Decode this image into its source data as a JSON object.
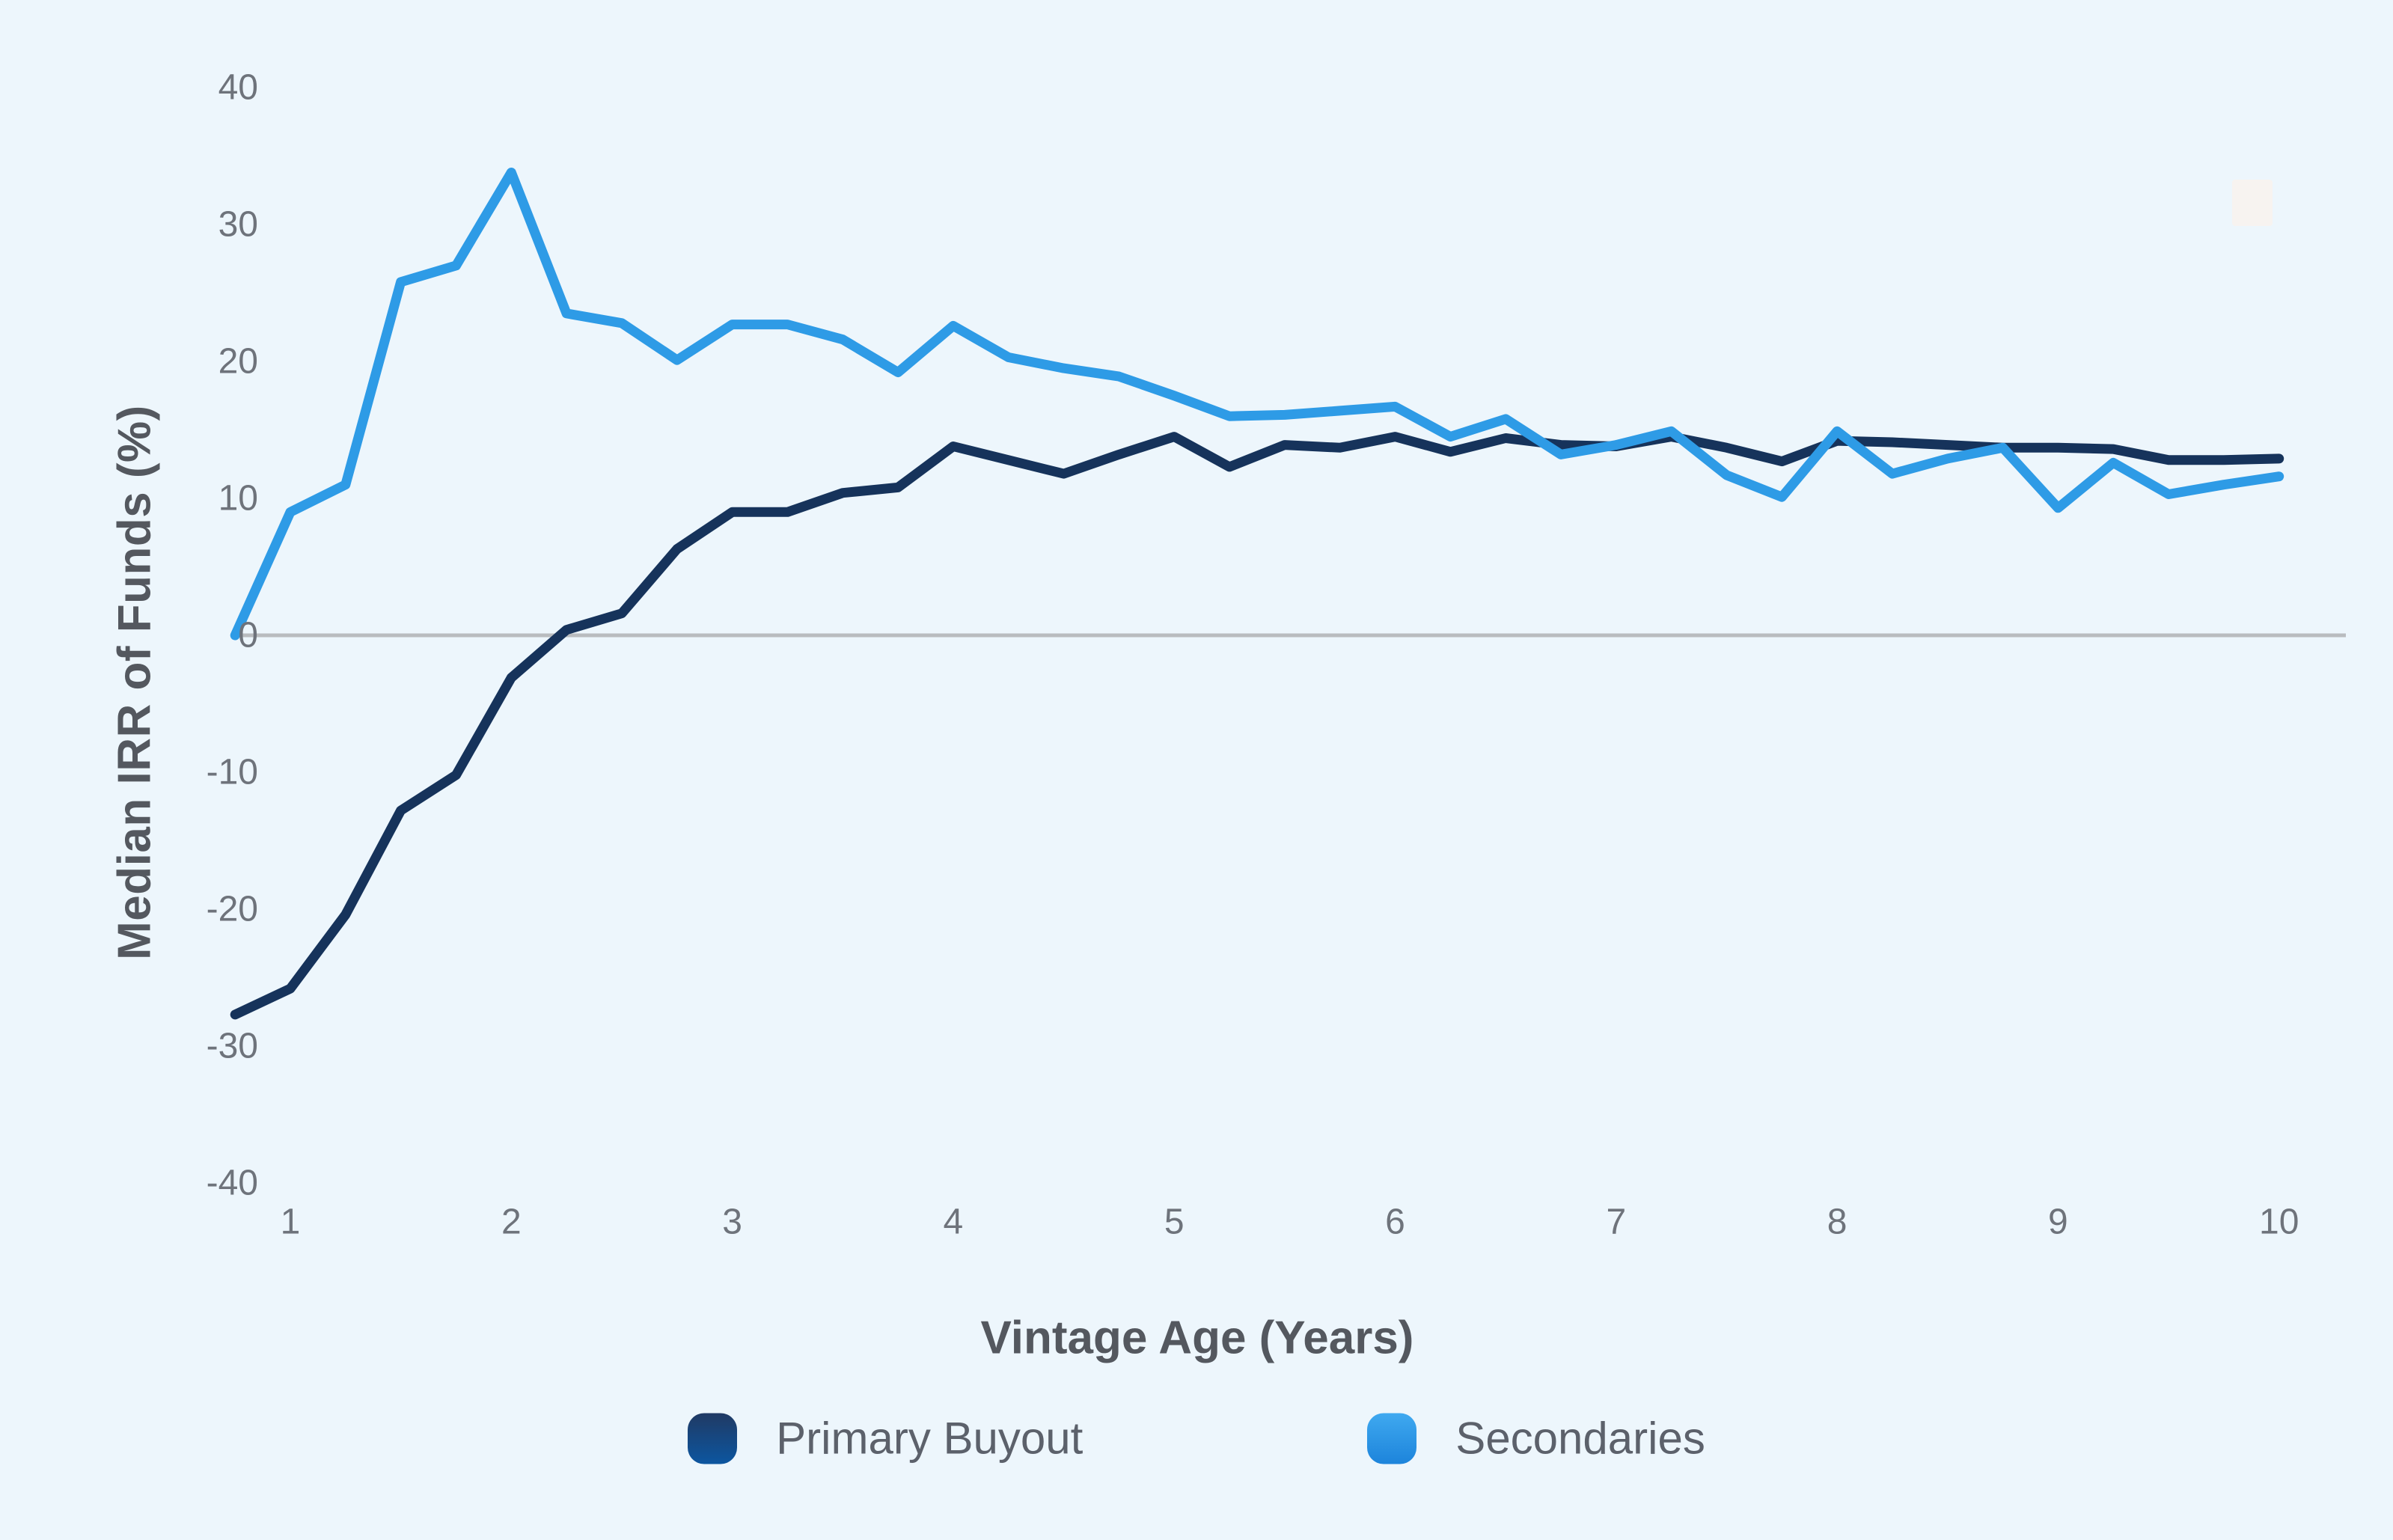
{
  "page": {
    "background_color": "#edf6fc"
  },
  "chart_data": {
    "type": "line",
    "title": "",
    "xlabel": "Vintage Age (Years)",
    "ylabel": "Median IRR of Funds (%)",
    "xlim": [
      0.75,
      10
    ],
    "ylim": [
      -40,
      40
    ],
    "xticks": [
      1,
      2,
      3,
      4,
      5,
      6,
      7,
      8,
      9,
      10
    ],
    "yticks": [
      40,
      30,
      20,
      10,
      0,
      -10,
      -20,
      -30,
      -40
    ],
    "grid": "zero-line-only",
    "zero_line_color": "#B9BCBF",
    "tick_label_color": "#6E737B",
    "axis_title_color": "#54585F",
    "legend_position": "bottom",
    "x": [
      0.75,
      1.0,
      1.25,
      1.5,
      1.75,
      2.0,
      2.25,
      2.5,
      2.75,
      3.0,
      3.25,
      3.5,
      3.75,
      4.0,
      4.25,
      4.5,
      4.75,
      5.0,
      5.25,
      5.5,
      5.75,
      6.0,
      6.25,
      6.5,
      6.75,
      7.0,
      7.25,
      7.5,
      7.75,
      8.0,
      8.25,
      8.5,
      8.75,
      9.0,
      9.25,
      9.5,
      9.75,
      10.0
    ],
    "series": [
      {
        "name": "Primary Buyout",
        "color": "#16335B",
        "swatch_gradient": [
          "#203A64",
          "#0C56A0"
        ],
        "values": [
          -27.7,
          -25.8,
          -20.4,
          -12.8,
          -10.2,
          -3.1,
          0.4,
          1.6,
          6.3,
          9.0,
          9.0,
          10.4,
          10.8,
          13.8,
          12.8,
          11.8,
          13.2,
          14.5,
          12.3,
          13.9,
          13.7,
          14.5,
          13.4,
          14.4,
          13.9,
          13.8,
          14.5,
          13.7,
          12.7,
          14.2,
          14.1,
          13.9,
          13.7,
          13.7,
          13.6,
          12.8,
          12.8,
          12.9
        ]
      },
      {
        "name": "Secondaries",
        "color": "#2E9BE6",
        "swatch_gradient": [
          "#3FA9F0",
          "#1D84DB"
        ],
        "values": [
          0.0,
          9.0,
          11.0,
          25.8,
          27.0,
          33.8,
          23.5,
          22.8,
          20.1,
          22.7,
          22.7,
          21.6,
          19.2,
          22.6,
          20.3,
          19.5,
          18.9,
          17.5,
          16.0,
          16.1,
          16.4,
          16.7,
          14.5,
          15.8,
          13.2,
          13.9,
          14.9,
          11.7,
          10.1,
          14.9,
          11.8,
          12.9,
          13.7,
          9.3,
          12.6,
          10.3,
          11.0,
          11.6
        ]
      }
    ]
  },
  "legend": {
    "items": [
      {
        "label": "Primary Buyout"
      },
      {
        "label": "Secondaries"
      }
    ]
  },
  "artifact": {
    "color": "#F7F3F0"
  }
}
